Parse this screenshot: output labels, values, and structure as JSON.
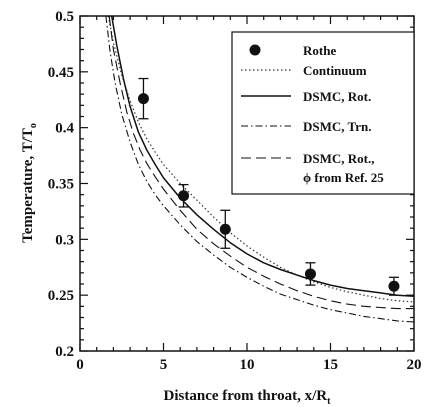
{
  "chart_data": {
    "type": "line",
    "xlabel": "Distance from throat, x/R",
    "xlabel_sub": "t",
    "ylabel": "Temperature, T/T",
    "ylabel_sub": "o",
    "xlim": [
      0,
      20
    ],
    "ylim": [
      0.2,
      0.5
    ],
    "xticks": [
      "0",
      "5",
      "10",
      "15",
      "20"
    ],
    "yticks": [
      "0.2",
      "0.25",
      "0.3",
      "0.35",
      "0.4",
      "0.45",
      "0.5"
    ],
    "grid": false,
    "legend_position": "top-right",
    "legend": {
      "rothe": "Rothe",
      "continuum": "Continuum",
      "dsmc_rot": "DSMC, Rot.",
      "dsmc_trn": "DSMC, Trn.",
      "dsmc_rot_ref_line1": "DSMC, Rot.,",
      "dsmc_rot_ref_line2": "ϕ from Ref. 25"
    },
    "series": [
      {
        "name": "Rothe",
        "kind": "points",
        "x": [
          3.8,
          6.2,
          8.7,
          13.8,
          18.8
        ],
        "y": [
          0.426,
          0.339,
          0.309,
          0.269,
          0.258
        ],
        "err": [
          0.018,
          0.01,
          0.017,
          0.01,
          0.008
        ]
      },
      {
        "name": "Continuum",
        "x": [
          1.7,
          2.0,
          2.5,
          3.0,
          3.5,
          4.0,
          4.5,
          5.0,
          6.0,
          7.0,
          8.0,
          9.0,
          10.0,
          11.0,
          12.0,
          13.0,
          14.0,
          15.0,
          16.0,
          17.0,
          18.0,
          19.0,
          20.0
        ],
        "y": [
          0.5,
          0.476,
          0.447,
          0.424,
          0.405,
          0.39,
          0.378,
          0.367,
          0.35,
          0.335,
          0.32,
          0.306,
          0.294,
          0.284,
          0.275,
          0.268,
          0.262,
          0.257,
          0.253,
          0.25,
          0.247,
          0.245,
          0.244
        ]
      },
      {
        "name": "DSMC, Rot.",
        "x": [
          1.9,
          2.2,
          2.6,
          3.0,
          3.5,
          4.0,
          4.5,
          5.0,
          6.0,
          7.0,
          8.0,
          9.0,
          10.0,
          11.0,
          12.0,
          13.0,
          14.0,
          15.0,
          16.0,
          17.0,
          18.0,
          19.0,
          20.0
        ],
        "y": [
          0.5,
          0.474,
          0.444,
          0.419,
          0.396,
          0.38,
          0.367,
          0.355,
          0.337,
          0.322,
          0.309,
          0.297,
          0.287,
          0.279,
          0.273,
          0.268,
          0.263,
          0.259,
          0.256,
          0.254,
          0.252,
          0.25,
          0.249
        ]
      },
      {
        "name": "DSMC, Trn.",
        "x": [
          1.55,
          1.8,
          2.1,
          2.5,
          3.0,
          3.5,
          4.0,
          4.5,
          5.0,
          6.0,
          7.0,
          8.0,
          9.0,
          10.0,
          11.0,
          12.0,
          13.0,
          14.0,
          15.0,
          16.0,
          17.0,
          18.0,
          19.0,
          20.0
        ],
        "y": [
          0.5,
          0.468,
          0.44,
          0.412,
          0.387,
          0.367,
          0.352,
          0.34,
          0.33,
          0.313,
          0.298,
          0.286,
          0.275,
          0.266,
          0.258,
          0.251,
          0.246,
          0.241,
          0.237,
          0.234,
          0.231,
          0.229,
          0.227,
          0.226
        ]
      },
      {
        "name": "DSMC, Rot., ϕ from Ref. 25",
        "x": [
          1.75,
          2.0,
          2.4,
          2.8,
          3.2,
          3.6,
          4.0,
          4.5,
          5.0,
          6.0,
          7.0,
          8.0,
          9.0,
          10.0,
          11.0,
          12.0,
          13.0,
          14.0,
          15.0,
          16.0,
          17.0,
          18.0,
          19.0,
          20.0
        ],
        "y": [
          0.5,
          0.47,
          0.44,
          0.414,
          0.395,
          0.38,
          0.368,
          0.356,
          0.345,
          0.326,
          0.309,
          0.296,
          0.285,
          0.275,
          0.267,
          0.26,
          0.254,
          0.249,
          0.245,
          0.242,
          0.24,
          0.239,
          0.238,
          0.238
        ]
      }
    ]
  }
}
